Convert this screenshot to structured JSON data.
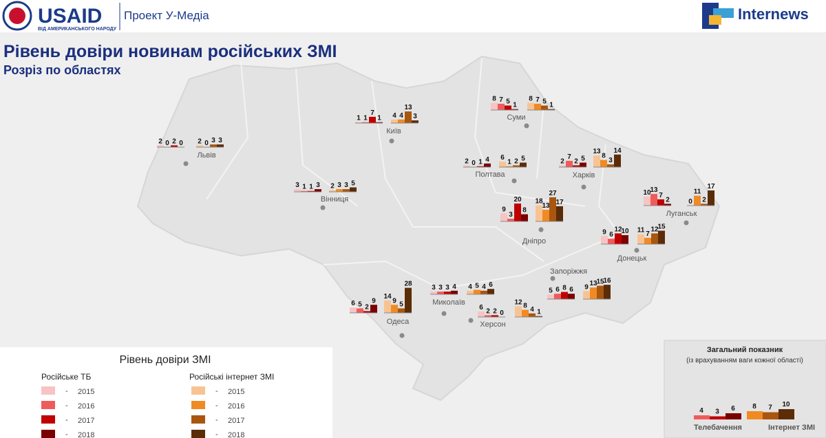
{
  "header": {
    "usaid": "USAID",
    "usaid_sub": "ВІД АМЕРИКАНСЬКОГО НАРОДУ",
    "project": "Проект У-Медіа",
    "internews": "Internews"
  },
  "title": "Рівень довіри новинам російських ЗМІ",
  "subtitle": "Розріз по областях",
  "regions": [
    {
      "name": "Львів",
      "tv": [
        2,
        0,
        2,
        0
      ],
      "internet": [
        2,
        0,
        3,
        3
      ]
    },
    {
      "name": "Київ",
      "tv": [
        1,
        1,
        7,
        1
      ],
      "internet": [
        4,
        4,
        13,
        3
      ]
    },
    {
      "name": "Суми",
      "tv": [
        8,
        7,
        5,
        1
      ],
      "internet": [
        8,
        7,
        5,
        1
      ]
    },
    {
      "name": "Полтава",
      "tv": [
        2,
        0,
        1,
        4
      ],
      "internet": [
        6,
        1,
        2,
        5
      ]
    },
    {
      "name": "Харків",
      "tv": [
        2,
        7,
        2,
        5
      ],
      "internet": [
        13,
        8,
        3,
        14
      ]
    },
    {
      "name": "Вінниця",
      "tv": [
        3,
        1,
        1,
        3
      ],
      "internet": [
        2,
        3,
        3,
        5
      ]
    },
    {
      "name": "Луганськ",
      "tv": [
        10,
        13,
        7,
        2
      ],
      "internet": [
        0,
        11,
        2,
        17
      ]
    },
    {
      "name": "Дніпро",
      "tv": [
        9,
        3,
        20,
        8
      ],
      "internet": [
        18,
        13,
        27,
        17
      ]
    },
    {
      "name": "Донецьк",
      "tv": [
        9,
        6,
        12,
        10
      ],
      "internet": [
        11,
        7,
        12,
        15
      ]
    },
    {
      "name": "Запоріжжя",
      "tv": [
        5,
        6,
        8,
        6
      ],
      "internet": [
        9,
        13,
        15,
        16
      ]
    },
    {
      "name": "Миколаїв",
      "tv": [
        3,
        3,
        3,
        4
      ],
      "internet": [
        4,
        5,
        4,
        6
      ]
    },
    {
      "name": "Одеса",
      "tv": [
        6,
        5,
        2,
        9
      ],
      "internet": [
        14,
        9,
        5,
        28
      ]
    },
    {
      "name": "Херсон",
      "tv": [
        6,
        2,
        2,
        0
      ],
      "internet": [
        12,
        8,
        4,
        1
      ]
    }
  ],
  "legend": {
    "title": "Рівень довіри ЗМІ",
    "tv_title": "Російське ТБ",
    "internet_title": "Російські інтернет ЗМІ",
    "years": [
      "2015",
      "2016",
      "2017",
      "2018"
    ],
    "tv_colors": [
      "#f7c3c3",
      "#ef5b5b",
      "#c00000",
      "#7b0000"
    ],
    "internet_colors": [
      "#f8c393",
      "#f08a24",
      "#a9560f",
      "#5b2c08"
    ]
  },
  "overall": {
    "title": "Загальний показник",
    "subtitle": "(із врахуванням ваги кожної області)",
    "tv_label": "Телебачення",
    "internet_label": "Інтернет ЗМІ",
    "tv": [
      4,
      3,
      6
    ],
    "internet": [
      8,
      7,
      10
    ]
  }
}
